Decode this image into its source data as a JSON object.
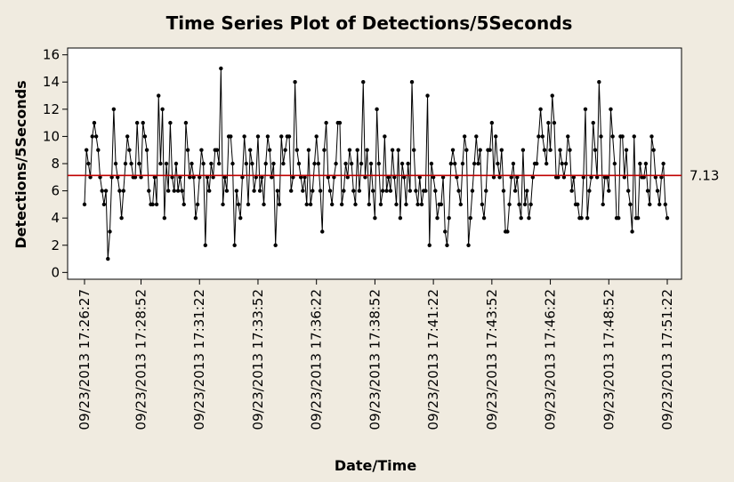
{
  "chart_data": {
    "type": "line",
    "title": "Time Series Plot of Detections/5Seconds",
    "xlabel": "Date/Time",
    "ylabel": "Detections/5Seconds",
    "ylim": [
      -0.5,
      16.5
    ],
    "yticks": [
      0,
      2,
      4,
      6,
      8,
      10,
      12,
      14,
      16
    ],
    "xticks": [
      "09/23/2013 17:26:27",
      "09/23/2013 17:28:52",
      "09/23/2013 17:31:22",
      "09/23/2013 17:33:52",
      "09/23/2013 17:36:22",
      "09/23/2013 17:38:52",
      "09/23/2013 17:41:22",
      "09/23/2013 17:43:52",
      "09/23/2013 17:46:22",
      "09/23/2013 17:48:52",
      "09/23/2013 17:51:22"
    ],
    "xtick_index": [
      0,
      29,
      59,
      89,
      119,
      149,
      179,
      209,
      239,
      269,
      299
    ],
    "reference_line": {
      "value": 7.13,
      "label": "7.13",
      "color": "#c00000"
    },
    "grid": false,
    "series": [
      {
        "color": "#000000",
        "values": [
          5,
          9,
          8,
          7,
          10,
          11,
          10,
          9,
          7,
          6,
          5,
          6,
          1,
          3,
          7,
          12,
          8,
          7,
          6,
          4,
          6,
          8,
          10,
          9,
          8,
          7,
          7,
          11,
          8,
          7,
          11,
          10,
          9,
          6,
          5,
          5,
          7,
          5,
          13,
          8,
          12,
          4,
          8,
          6,
          11,
          7,
          6,
          8,
          6,
          7,
          6,
          5,
          11,
          9,
          7,
          8,
          7,
          4,
          5,
          7,
          9,
          8,
          2,
          7,
          6,
          8,
          7,
          9,
          9,
          8,
          15,
          5,
          7,
          6,
          10,
          10,
          8,
          2,
          6,
          5,
          4,
          7,
          10,
          8,
          5,
          9,
          8,
          6,
          7,
          10,
          6,
          7,
          5,
          8,
          10,
          9,
          7,
          8,
          2,
          6,
          5,
          10,
          8,
          9,
          10,
          10,
          6,
          7,
          14,
          9,
          8,
          7,
          6,
          7,
          5,
          9,
          5,
          6,
          8,
          10,
          8,
          6,
          3,
          9,
          11,
          7,
          6,
          5,
          7,
          8,
          11,
          11,
          5,
          6,
          8,
          7,
          9,
          8,
          6,
          5,
          9,
          6,
          8,
          14,
          7,
          9,
          5,
          8,
          6,
          4,
          12,
          8,
          5,
          6,
          10,
          6,
          7,
          6,
          9,
          7,
          5,
          9,
          4,
          8,
          7,
          5,
          8,
          6,
          14,
          9,
          6,
          5,
          7,
          5,
          6,
          6,
          13,
          2,
          8,
          7,
          6,
          4,
          5,
          5,
          7,
          3,
          2,
          4,
          8,
          9,
          8,
          7,
          6,
          5,
          8,
          10,
          9,
          2,
          4,
          6,
          8,
          10,
          8,
          9,
          5,
          4,
          6,
          9,
          9,
          11,
          7,
          10,
          8,
          7,
          9,
          6,
          3,
          3,
          5,
          7,
          8,
          6,
          7,
          5,
          4,
          9,
          5,
          6,
          4,
          5,
          7,
          8,
          8,
          10,
          12,
          10,
          9,
          8,
          11,
          9,
          13,
          11,
          7,
          7,
          9,
          8,
          7,
          8,
          10,
          9,
          6,
          7,
          5,
          5,
          4,
          4,
          7,
          12,
          4,
          6,
          7,
          11,
          9,
          7,
          14,
          10,
          5,
          7,
          7,
          6,
          12,
          10,
          8,
          4,
          4,
          10,
          10,
          7,
          9,
          6,
          5,
          3,
          10,
          4,
          4,
          8,
          7,
          7,
          8,
          6,
          5,
          10,
          9,
          7,
          6,
          5,
          7,
          8,
          5,
          4
        ]
      }
    ]
  }
}
